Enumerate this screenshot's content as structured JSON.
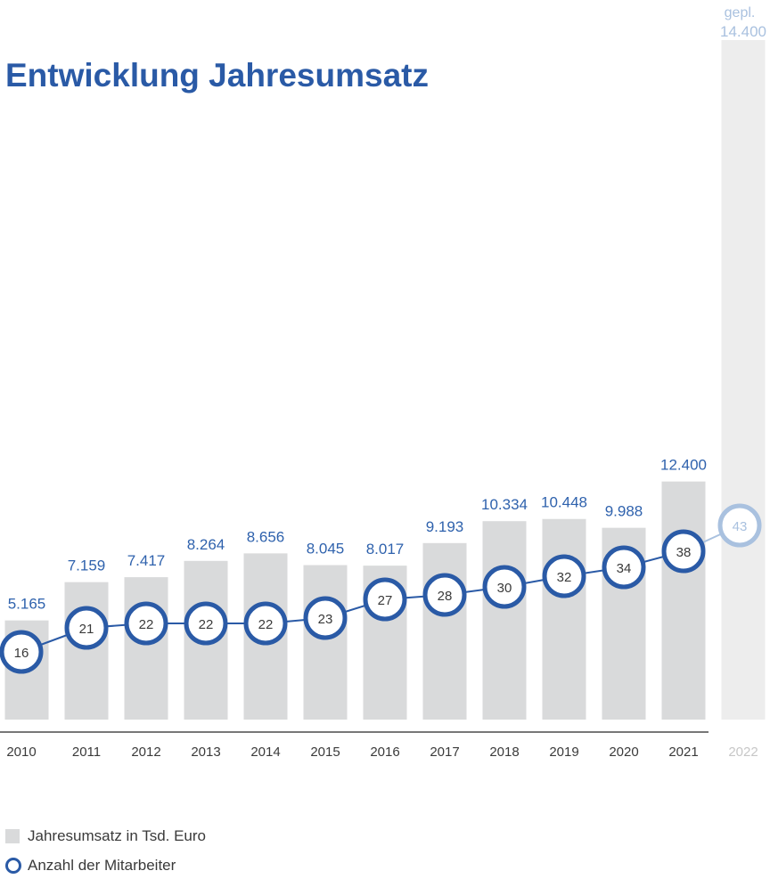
{
  "chart_data": {
    "type": "bar",
    "title": "Entwicklung Jahresumsatz",
    "categories": [
      "2010",
      "2011",
      "2012",
      "2013",
      "2014",
      "2015",
      "2016",
      "2017",
      "2018",
      "2019",
      "2020",
      "2021",
      "2022"
    ],
    "series": [
      {
        "name": "Jahresumsatz in Tsd. Euro",
        "type": "bar",
        "values": [
          5165,
          7159,
          7417,
          8264,
          8656,
          8045,
          8017,
          9193,
          10334,
          10448,
          9988,
          12400,
          14400
        ],
        "labels": [
          "5.165",
          "7.159",
          "7.417",
          "8.264",
          "8.656",
          "8.045",
          "8.017",
          "9.193",
          "10.334",
          "10.448",
          "9.988",
          "12.400",
          "14.400"
        ]
      },
      {
        "name": "Anzahl der Mitarbeiter",
        "type": "line",
        "values": [
          16,
          21,
          22,
          22,
          22,
          23,
          27,
          28,
          30,
          32,
          34,
          38,
          43
        ]
      }
    ],
    "planned_index": 12,
    "planned_annotation": "gepl.",
    "colors": {
      "bar": "#d9dadb",
      "bar_planned": "#ededed",
      "accent": "#2a5aa6",
      "accent_planned": "#a9c1df",
      "axis": "#4a4a4a"
    },
    "legend_position": "bottom-left",
    "grid": false
  },
  "legend": {
    "revenue_label": "Jahresumsatz in Tsd. Euro",
    "employees_label": "Anzahl der Mitarbeiter"
  }
}
